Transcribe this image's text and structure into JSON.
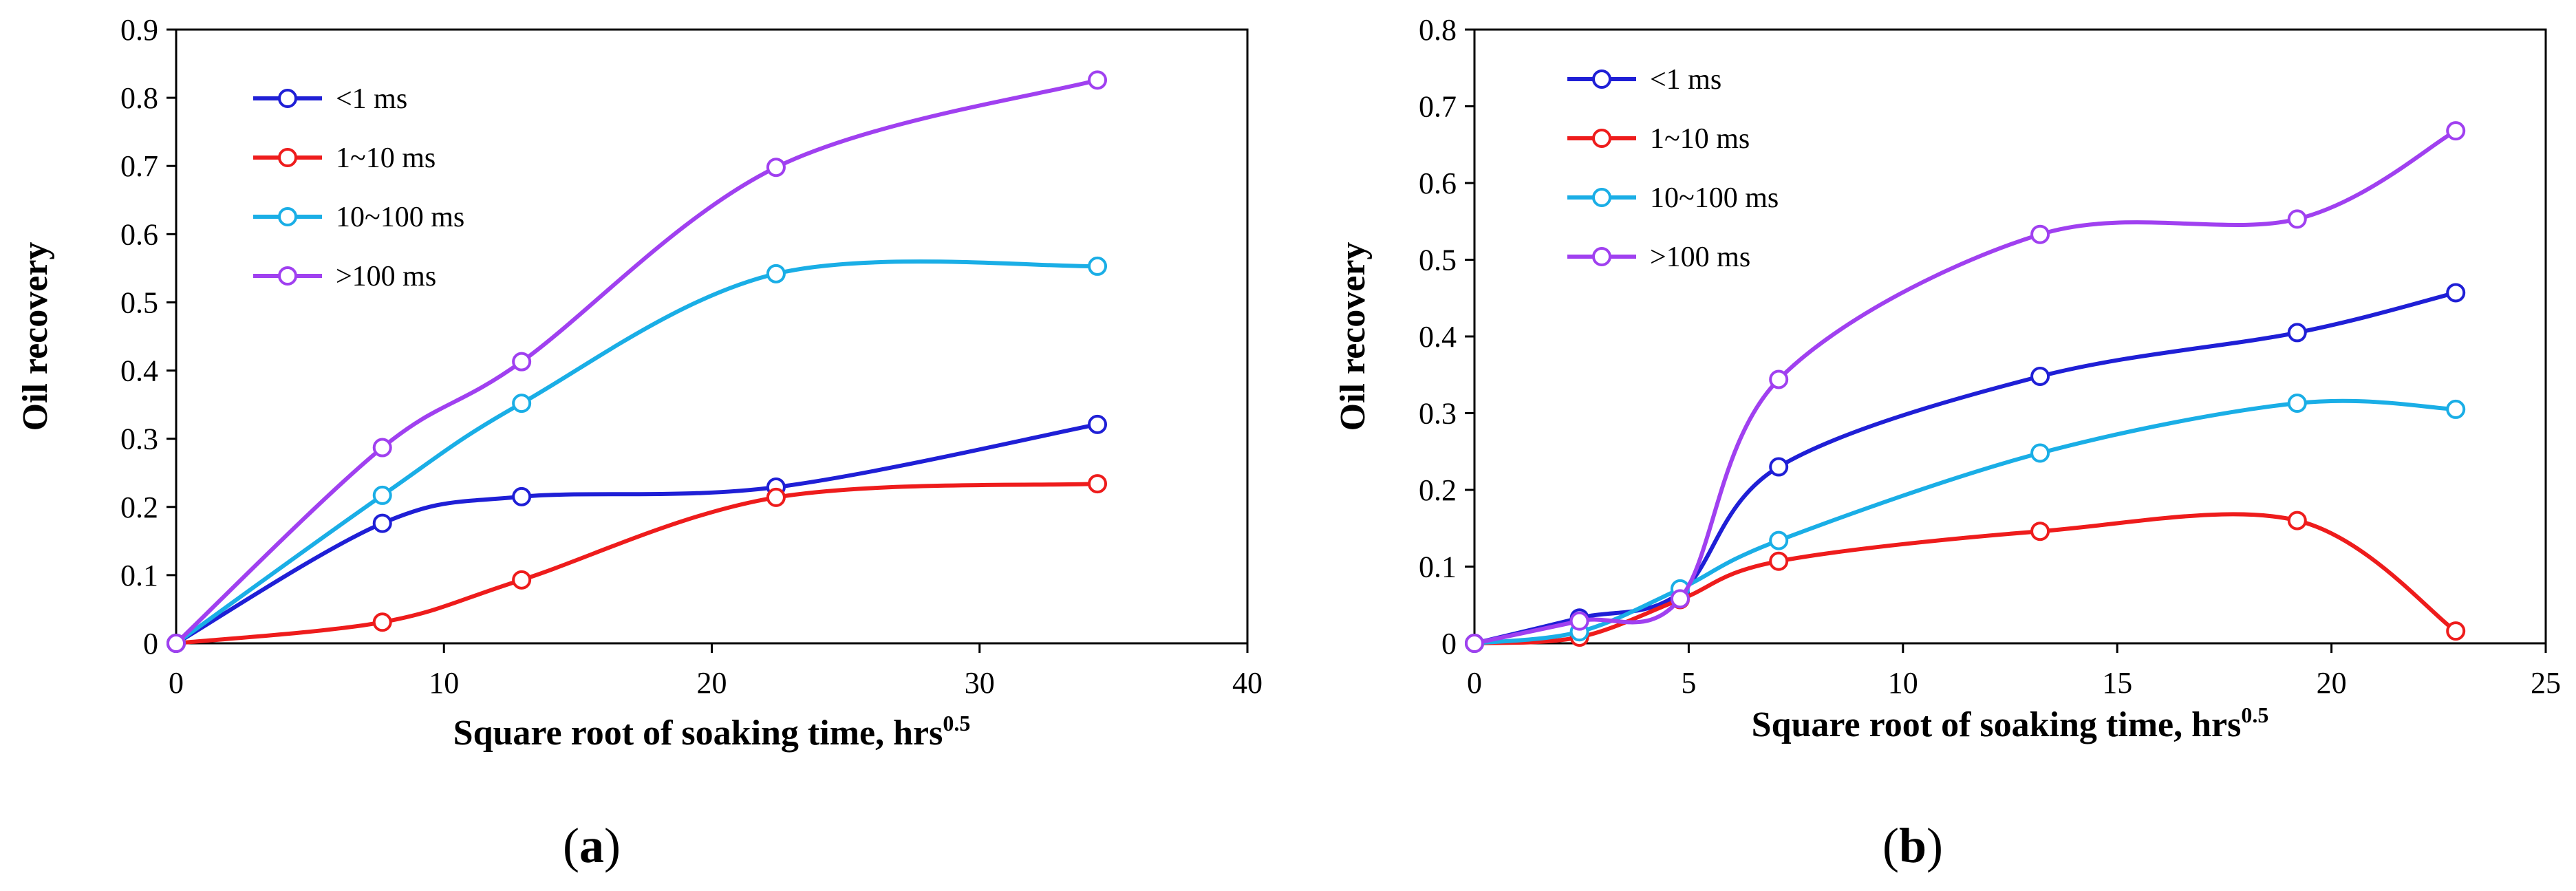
{
  "chart_data": [
    {
      "type": "line",
      "panel_label": "a",
      "xlabel": "Square root of soaking time, hrs",
      "xlabel_superscript": "0.5",
      "ylabel": "Oil recovery",
      "xlim": [
        0,
        40
      ],
      "ylim": [
        0,
        0.9
      ],
      "xticks": [
        0,
        10,
        20,
        30,
        40
      ],
      "yticks": [
        0,
        0.1,
        0.2,
        0.3,
        0.4,
        0.5,
        0.6,
        0.7,
        0.8,
        0.9
      ],
      "grid": false,
      "legend_position": "top-left",
      "x": [
        0,
        7.7,
        12.9,
        22.4,
        34.4
      ],
      "series": [
        {
          "name": "<1 ms",
          "color": "#1f1fd6",
          "values": [
            0,
            0.176,
            0.215,
            0.229,
            0.321
          ]
        },
        {
          "name": "1~10 ms",
          "color": "#ee1c1c",
          "values": [
            0,
            0.031,
            0.093,
            0.214,
            0.234
          ]
        },
        {
          "name": "10~100 ms",
          "color": "#1aaee6",
          "values": [
            0,
            0.217,
            0.352,
            0.542,
            0.553
          ]
        },
        {
          "name": ">100 ms",
          "color": "#a040f0",
          "values": [
            0,
            0.287,
            0.413,
            0.698,
            0.826
          ]
        }
      ]
    },
    {
      "type": "line",
      "panel_label": "b",
      "xlabel": "Square root of soaking time, hrs",
      "xlabel_superscript": "0.5",
      "ylabel": "Oil recovery",
      "xlim": [
        0,
        25
      ],
      "ylim": [
        0,
        0.8
      ],
      "xticks": [
        0,
        5,
        10,
        15,
        20,
        25
      ],
      "yticks": [
        0,
        0.1,
        0.2,
        0.3,
        0.4,
        0.5,
        0.6,
        0.7,
        0.8
      ],
      "grid": false,
      "legend_position": "top-left",
      "x": [
        0,
        2.45,
        4.8,
        7.1,
        13.2,
        19.2,
        22.9
      ],
      "series": [
        {
          "name": "<1 ms",
          "color": "#1f1fd6",
          "values": [
            0,
            0.033,
            0.066,
            0.23,
            0.348,
            0.405,
            0.457
          ]
        },
        {
          "name": "1~10 ms",
          "color": "#ee1c1c",
          "values": [
            0,
            0.008,
            0.057,
            0.107,
            0.146,
            0.16,
            0.016
          ]
        },
        {
          "name": "10~100 ms",
          "color": "#1aaee6",
          "values": [
            0,
            0.015,
            0.071,
            0.134,
            0.248,
            0.313,
            0.305
          ]
        },
        {
          "name": ">100 ms",
          "color": "#a040f0",
          "values": [
            0,
            0.029,
            0.058,
            0.344,
            0.533,
            0.553,
            0.668
          ]
        }
      ]
    }
  ]
}
